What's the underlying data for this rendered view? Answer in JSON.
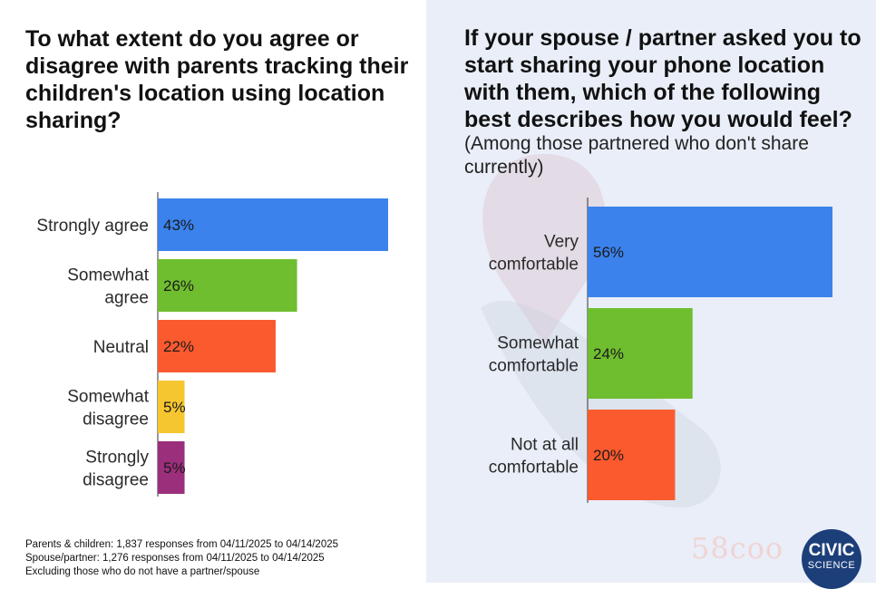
{
  "left": {
    "title": "To what extent do you agree or disagree with parents tracking their children's location using location sharing?",
    "footnotes": [
      "Parents & children: 1,837 responses from 04/11/2025 to 04/14/2025",
      "Spouse/partner: 1,276 responses from 04/11/2025 to 04/14/2025",
      "Excluding those who do not have a partner/spouse"
    ]
  },
  "right": {
    "title": "If your spouse / partner asked you to start sharing your phone location with them, which of the following best describes how you would feel?",
    "subtitle": "(Among those partnered who don't share currently)"
  },
  "logo": {
    "line1": "CIVIC",
    "line2": "SCIENCE"
  },
  "watermark": "58coo",
  "chart_data": [
    {
      "type": "bar",
      "orientation": "horizontal",
      "title": "To what extent do you agree or disagree with parents tracking their children's location using location sharing?",
      "categories": [
        [
          "Strongly agree"
        ],
        [
          "Somewhat",
          "agree"
        ],
        [
          "Neutral"
        ],
        [
          "Somewhat",
          "disagree"
        ],
        [
          "Strongly",
          "disagree"
        ]
      ],
      "values": [
        43,
        26,
        22,
        5,
        5
      ],
      "value_labels": [
        "43%",
        "26%",
        "22%",
        "5%",
        "5%"
      ],
      "colors": [
        "#3b82ec",
        "#6fbe2f",
        "#fb5a2e",
        "#f6c631",
        "#9b2f7c"
      ],
      "xlim": [
        0,
        43
      ],
      "grid": false
    },
    {
      "type": "bar",
      "orientation": "horizontal",
      "title": "If your spouse / partner asked you to start sharing your phone location with them, which of the following best describes how you would feel?",
      "subtitle": "(Among those partnered who don't share currently)",
      "categories": [
        [
          "Very",
          "comfortable"
        ],
        [
          "Somewhat",
          "comfortable"
        ],
        [
          "Not at all",
          "comfortable"
        ]
      ],
      "values": [
        56,
        24,
        20
      ],
      "value_labels": [
        "56%",
        "24%",
        "20%"
      ],
      "colors": [
        "#3b82ec",
        "#6fbe2f",
        "#fb5a2e"
      ],
      "xlim": [
        0,
        56
      ],
      "grid": false
    }
  ]
}
